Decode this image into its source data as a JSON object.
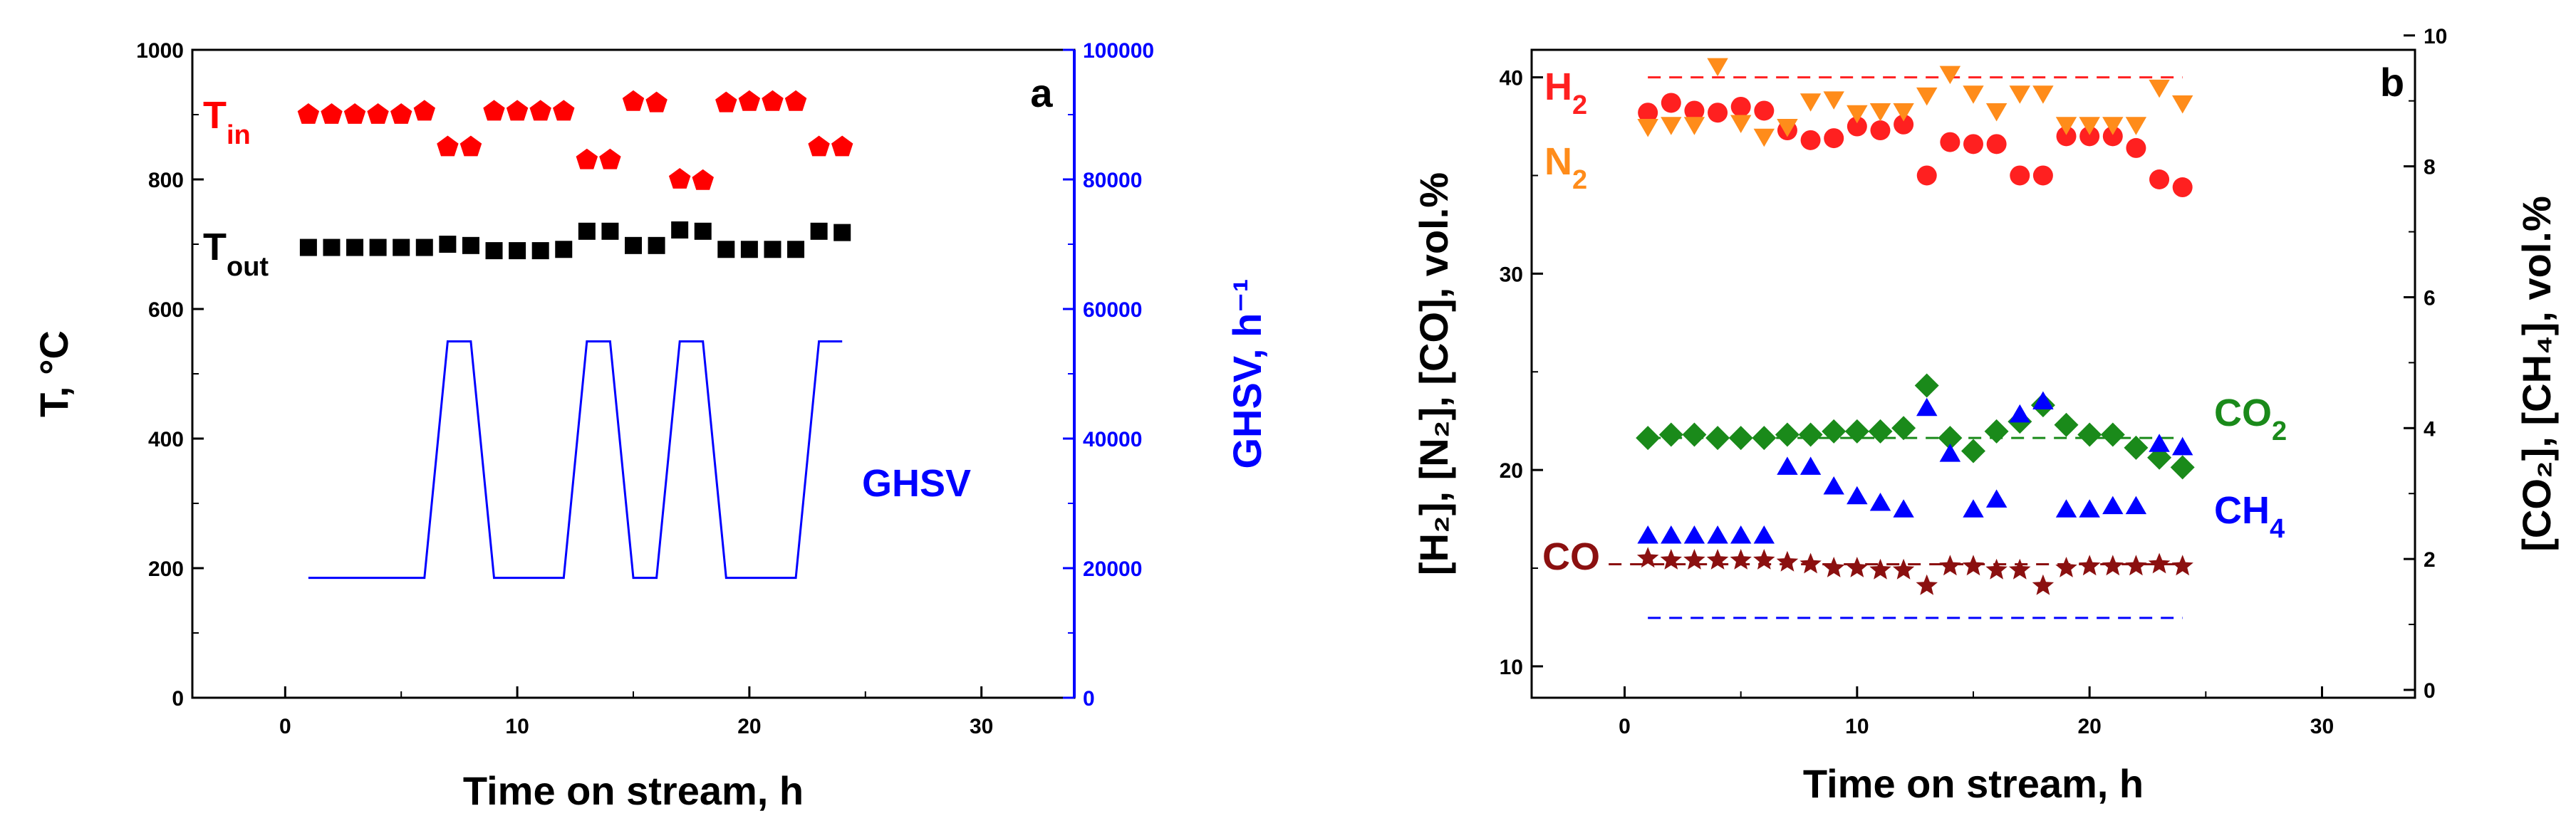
{
  "chart_data": [
    {
      "panel": "a",
      "type": "scatter",
      "xlabel": "Time on stream, h",
      "ylabel": "T, °C",
      "y2label": "GHSV, h⁻¹",
      "xlim": [
        -4,
        34
      ],
      "ylim": [
        0,
        1000
      ],
      "y2lim": [
        0,
        100000
      ],
      "xticks": [
        0,
        10,
        20,
        30
      ],
      "yticks": [
        0,
        200,
        400,
        600,
        800,
        1000
      ],
      "y2ticks": [
        0,
        20000,
        40000,
        60000,
        80000,
        100000
      ],
      "colors": {
        "tin": "#ff0000",
        "tout": "#000000",
        "ghsv": "#0000ff"
      },
      "series": [
        {
          "key": "tin",
          "name": "Tin",
          "label_main": "T",
          "label_sub": "in",
          "marker": "pentagon",
          "axis": "left",
          "x": [
            1,
            2,
            3,
            4,
            5,
            6,
            7,
            8,
            9,
            10,
            11,
            12,
            13,
            14,
            15,
            16,
            17,
            18,
            19,
            20,
            21,
            22,
            23,
            24
          ],
          "y": [
            900,
            900,
            900,
            900,
            900,
            905,
            850,
            850,
            905,
            905,
            905,
            905,
            830,
            830,
            920,
            918,
            800,
            798,
            918,
            920,
            920,
            920,
            850,
            850
          ]
        },
        {
          "key": "tout",
          "name": "Tout",
          "label_main": "T",
          "label_sub": "out",
          "marker": "square",
          "axis": "left",
          "x": [
            1,
            2,
            3,
            4,
            5,
            6,
            7,
            8,
            9,
            10,
            11,
            12,
            13,
            14,
            15,
            16,
            17,
            18,
            19,
            20,
            21,
            22,
            23,
            24
          ],
          "y": [
            695,
            695,
            695,
            695,
            695,
            695,
            700,
            698,
            690,
            690,
            690,
            692,
            720,
            720,
            698,
            698,
            722,
            720,
            692,
            692,
            692,
            692,
            720,
            718
          ]
        },
        {
          "key": "ghsv",
          "name": "GHSV",
          "label_main": "GHSV",
          "label_sub": "",
          "marker": "line",
          "axis": "right",
          "x": [
            1,
            6,
            7,
            8,
            9,
            12,
            13,
            14,
            15,
            16,
            17,
            18,
            19,
            22,
            23,
            24
          ],
          "y": [
            18500,
            18500,
            55000,
            55000,
            18500,
            18500,
            55000,
            55000,
            18500,
            18500,
            55000,
            55000,
            18500,
            18500,
            55000,
            55000
          ]
        }
      ]
    },
    {
      "panel": "b",
      "type": "scatter",
      "xlabel": "Time on stream, h",
      "ylabel": "[H₂], [N₂], [CO], vol.%",
      "y2label": "[CO₂], [CH₄], vol.%",
      "xlim": [
        -4,
        34
      ],
      "ylim": [
        8.4,
        41.4
      ],
      "y2lim": [
        -0.12,
        9.78
      ],
      "xticks": [
        0,
        10,
        20,
        30
      ],
      "yticks": [
        10,
        20,
        30,
        40
      ],
      "y2ticks": [
        0,
        2,
        4,
        6,
        8,
        10
      ],
      "colors": {
        "h2": "#ff2020",
        "n2": "#ff8c1a",
        "co2": "#1a8a1a",
        "ch4": "#0000ff",
        "co": "#8b1010"
      },
      "series": [
        {
          "key": "h2",
          "name": "H2",
          "label_main": "H",
          "label_sub": "2",
          "marker": "circle",
          "axis": "left",
          "x": [
            1,
            2,
            3,
            4,
            5,
            6,
            7,
            8,
            9,
            10,
            11,
            12,
            13,
            14,
            15,
            16,
            17,
            18,
            19,
            20,
            21,
            22,
            23,
            24
          ],
          "y": [
            38.2,
            38.7,
            38.3,
            38.2,
            38.5,
            38.3,
            37.3,
            36.8,
            36.9,
            37.5,
            37.3,
            37.6,
            35.0,
            36.7,
            36.6,
            36.6,
            35.0,
            35.0,
            37.0,
            37.0,
            37.0,
            36.4,
            34.8,
            34.4
          ],
          "reference": 40.0
        },
        {
          "key": "n2",
          "name": "N2",
          "label_main": "N",
          "label_sub": "2",
          "marker": "triangle-down",
          "axis": "left",
          "x": [
            1,
            2,
            3,
            4,
            5,
            6,
            7,
            8,
            9,
            10,
            11,
            12,
            13,
            14,
            15,
            16,
            17,
            18,
            19,
            20,
            21,
            22,
            23,
            24
          ],
          "y": [
            37.5,
            37.6,
            37.6,
            40.6,
            37.7,
            37.0,
            37.5,
            38.8,
            38.9,
            38.2,
            38.3,
            38.3,
            39.1,
            40.2,
            39.2,
            38.3,
            39.2,
            39.2,
            37.6,
            37.6,
            37.6,
            37.6,
            39.5,
            38.7
          ]
        },
        {
          "key": "co2",
          "name": "CO2",
          "label_main": "CO",
          "label_sub": "2",
          "marker": "diamond",
          "axis": "right",
          "x": [
            1,
            2,
            3,
            4,
            5,
            6,
            7,
            8,
            9,
            10,
            11,
            12,
            13,
            14,
            15,
            16,
            17,
            18,
            19,
            20,
            21,
            22,
            23,
            24
          ],
          "y": [
            3.85,
            3.9,
            3.9,
            3.85,
            3.85,
            3.85,
            3.9,
            3.9,
            3.95,
            3.95,
            3.95,
            4.0,
            4.65,
            3.85,
            3.65,
            3.95,
            4.1,
            4.35,
            4.05,
            3.9,
            3.9,
            3.7,
            3.55,
            3.4
          ],
          "reference": 3.85
        },
        {
          "key": "ch4",
          "name": "CH4",
          "label_main": "CH",
          "label_sub": "4",
          "marker": "triangle-up",
          "axis": "right",
          "x": [
            1,
            2,
            3,
            4,
            5,
            6,
            7,
            8,
            9,
            10,
            11,
            12,
            13,
            14,
            15,
            16,
            17,
            18,
            19,
            20,
            21,
            22,
            23,
            24
          ],
          "y": [
            2.35,
            2.35,
            2.35,
            2.35,
            2.35,
            2.35,
            3.4,
            3.4,
            3.1,
            2.95,
            2.85,
            2.75,
            4.3,
            3.6,
            2.75,
            2.9,
            4.2,
            4.4,
            2.75,
            2.75,
            2.8,
            2.8,
            3.75,
            3.7
          ],
          "reference": 1.1
        },
        {
          "key": "co",
          "name": "CO",
          "label_main": "CO",
          "label_sub": "",
          "marker": "star",
          "axis": "left",
          "x": [
            1,
            2,
            3,
            4,
            5,
            6,
            7,
            8,
            9,
            10,
            11,
            12,
            13,
            14,
            15,
            16,
            17,
            18,
            19,
            20,
            21,
            22,
            23,
            24
          ],
          "y": [
            15.5,
            15.4,
            15.4,
            15.4,
            15.4,
            15.4,
            15.3,
            15.2,
            15.0,
            15.0,
            14.9,
            14.9,
            14.1,
            15.1,
            15.1,
            14.9,
            14.9,
            14.1,
            15.0,
            15.1,
            15.1,
            15.1,
            15.2,
            15.1
          ],
          "reference": 15.2
        }
      ]
    }
  ]
}
